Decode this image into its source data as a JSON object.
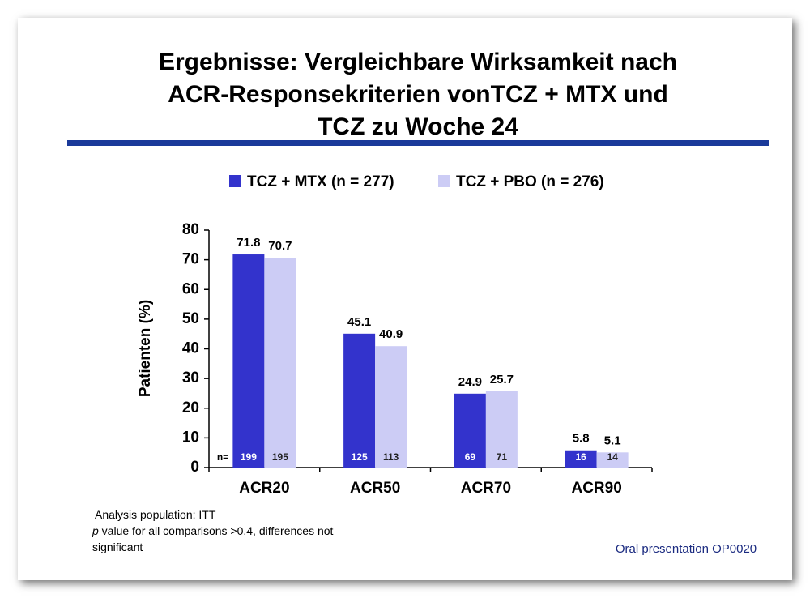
{
  "chart_data": {
    "type": "bar",
    "title": [
      "Ergebnisse: Vergleichbare Wirksamkeit nach",
      "ACR-Responsekriterien vonTCZ + MTX und",
      "TCZ zu Woche 24"
    ],
    "y_label": "Patienten (%)",
    "categories": [
      "ACR20",
      "ACR50",
      "ACR70",
      "ACR90"
    ],
    "series": [
      {
        "name": "TCZ + MTX (n = 277)",
        "color": "#3333cc",
        "values": [
          71.8,
          45.1,
          24.9,
          5.8
        ],
        "n": [
          199,
          125,
          69,
          16
        ]
      },
      {
        "name": "TCZ + PBO (n = 276)",
        "color": "#ccccf5",
        "values": [
          70.7,
          40.9,
          25.7,
          5.1
        ],
        "n": [
          195,
          113,
          71,
          14
        ]
      }
    ],
    "n_label": "n=",
    "ylim": [
      0,
      80
    ],
    "yticks": [
      0,
      10,
      20,
      30,
      40,
      50,
      60,
      70,
      80
    ],
    "notes": [
      "Analysis population: ITT",
      "p value for all comparisons >0.4, differences not",
      "significant"
    ],
    "source": "Oral presentation OP0020"
  }
}
